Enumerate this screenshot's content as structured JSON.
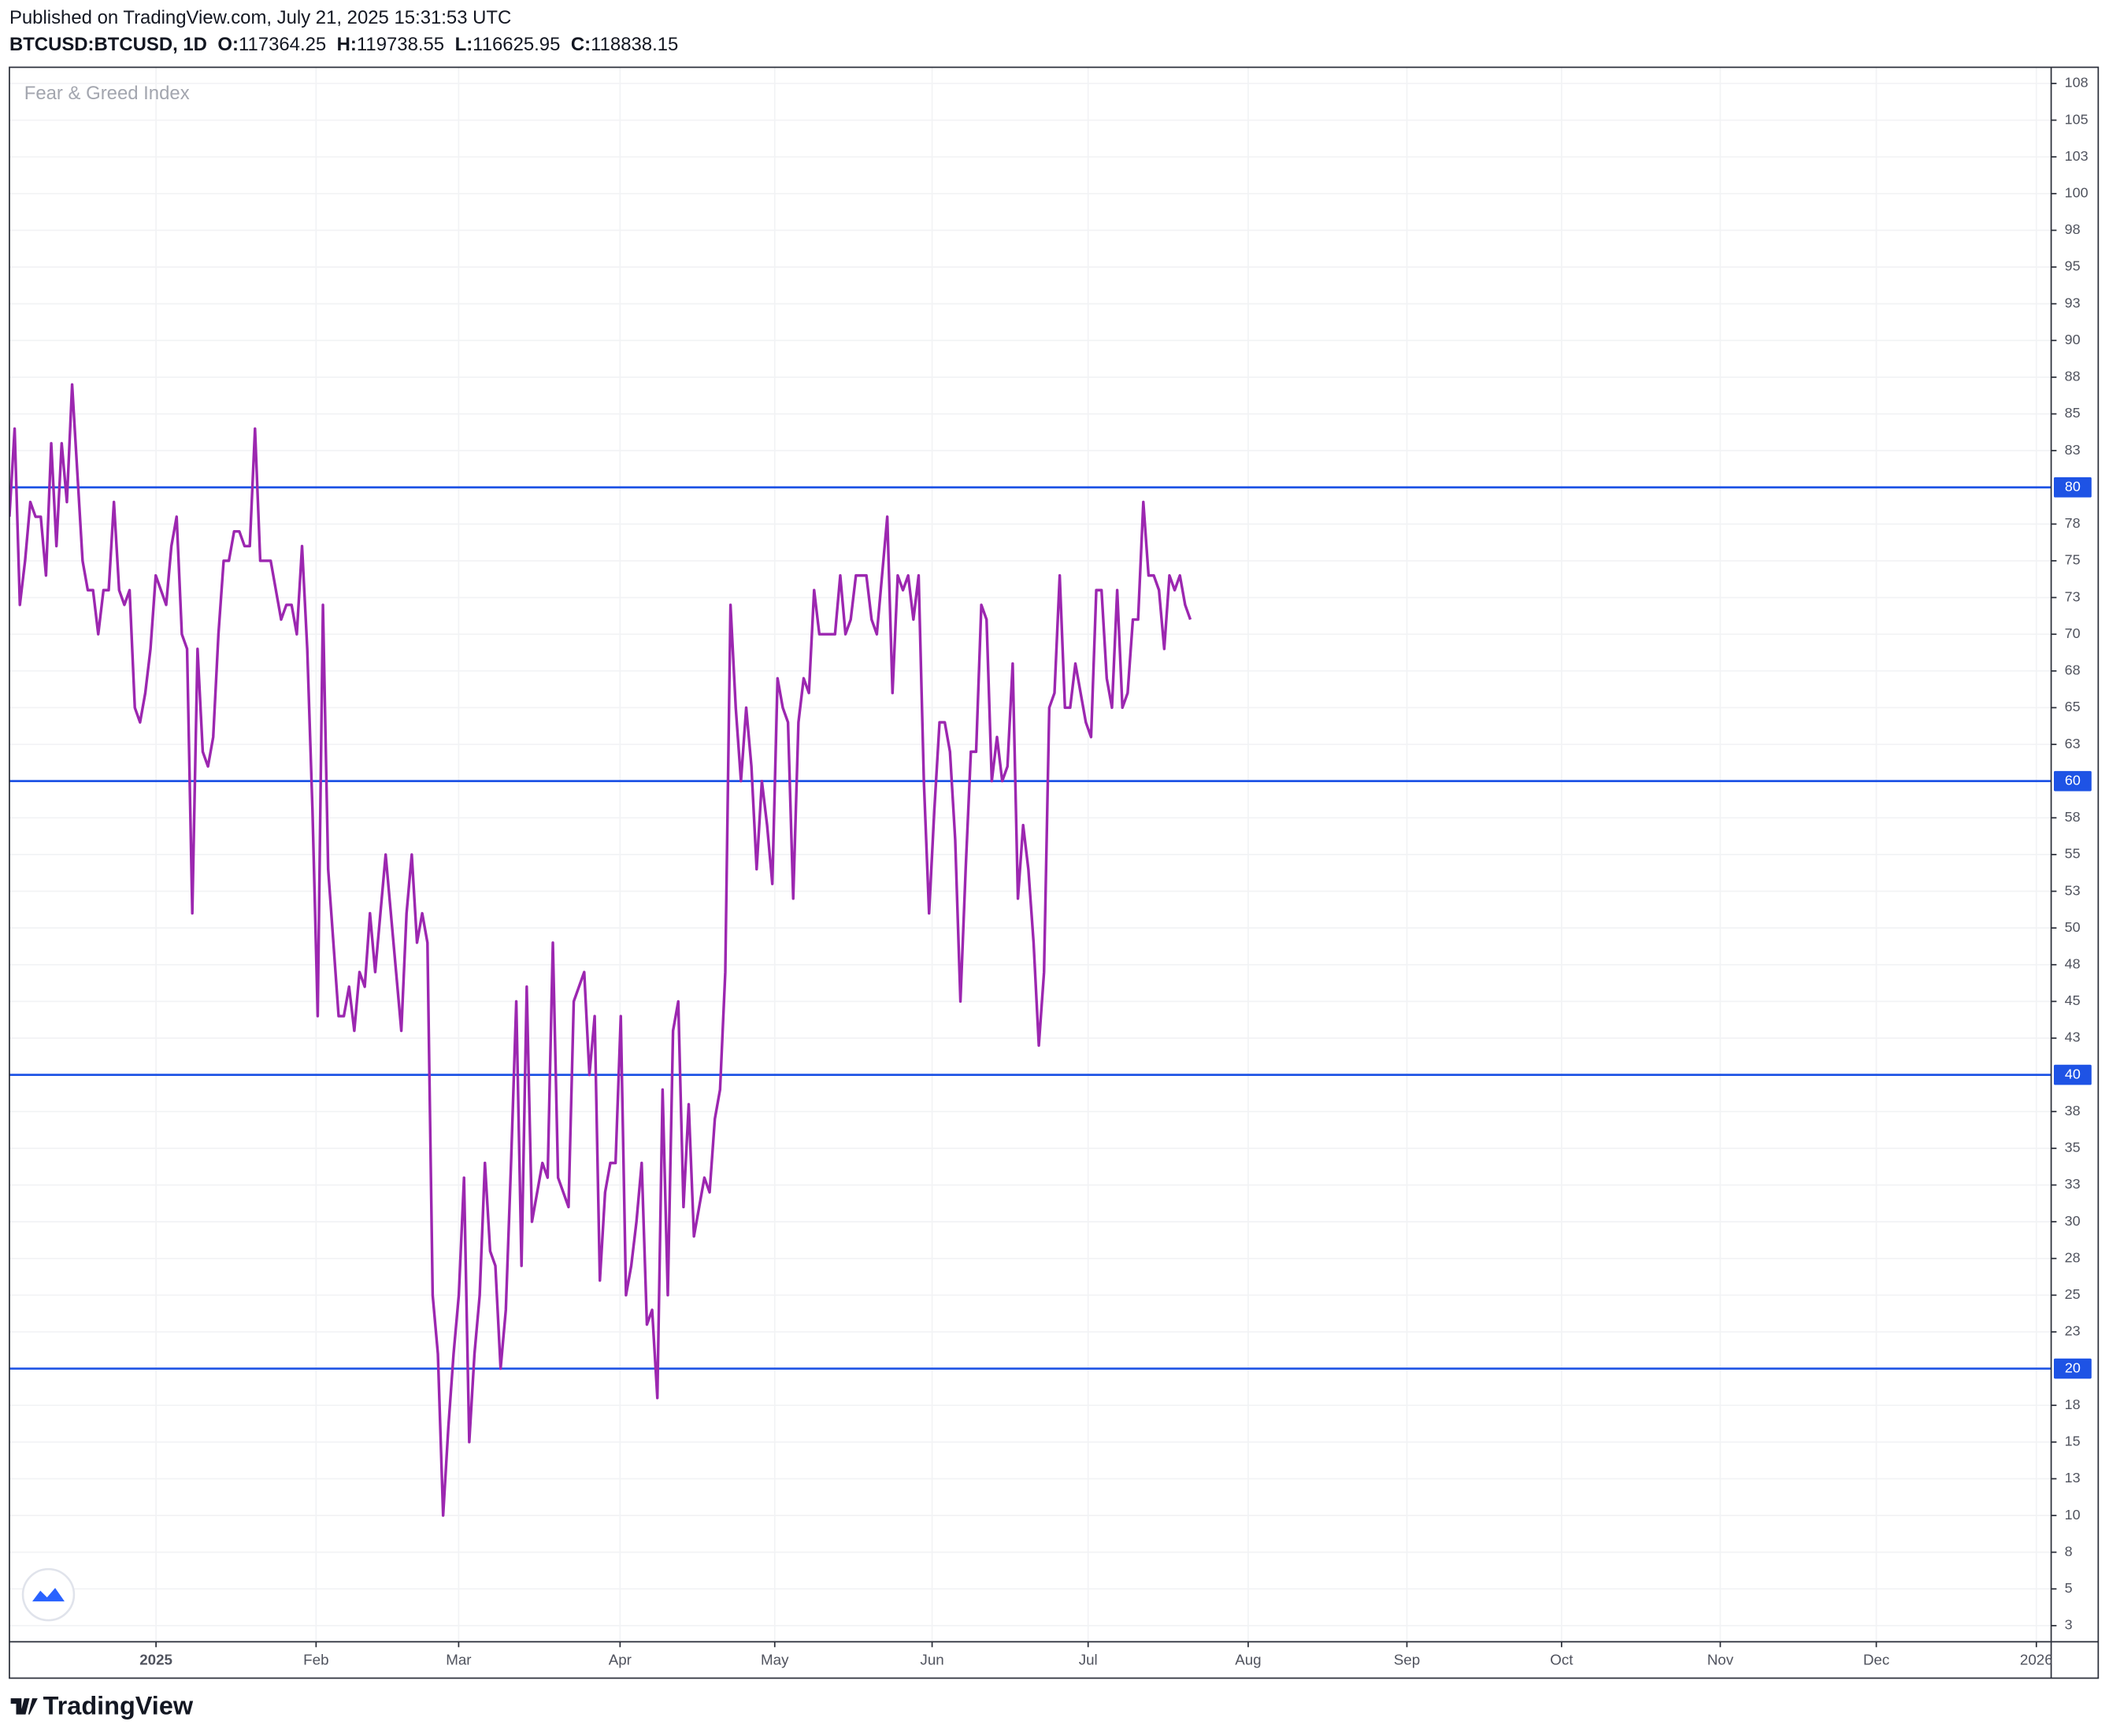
{
  "header": {
    "published": "Published on TradingView.com, July 21, 2025 15:31:53 UTC",
    "symbol": "BTCUSD:BTCUSD, 1D",
    "ohlc": [
      {
        "label": "O:",
        "value": "117364.25"
      },
      {
        "label": "H:",
        "value": "119738.55"
      },
      {
        "label": "L:",
        "value": "116625.95"
      },
      {
        "label": "C:",
        "value": "118838.15"
      }
    ]
  },
  "chart_data": {
    "type": "line",
    "title": "Fear & Greed Index",
    "x_axis_labels": [
      "2025",
      "Feb",
      "Mar",
      "Apr",
      "May",
      "Jun",
      "Jul",
      "Aug",
      "Sep",
      "Oct",
      "Nov",
      "Dec",
      "2026"
    ],
    "series": [
      {
        "color": "#9c27b0",
        "values": [
          78,
          84,
          72,
          75,
          79,
          78,
          78,
          74,
          83,
          76,
          83,
          79,
          87,
          81,
          75,
          73,
          73,
          70,
          73,
          73,
          79,
          73,
          72,
          73,
          65,
          64,
          66,
          69,
          74,
          73,
          72,
          76,
          78,
          70,
          69,
          51,
          69,
          62,
          61,
          63,
          70,
          75,
          75,
          77,
          77,
          76,
          76,
          84,
          75,
          75,
          75,
          73,
          71,
          72,
          72,
          70,
          76,
          69,
          58,
          44,
          72,
          54,
          49,
          44,
          44,
          46,
          43,
          47,
          46,
          51,
          47,
          51,
          55,
          51,
          47,
          43,
          51,
          55,
          49,
          51,
          49,
          25,
          21,
          10,
          16,
          21,
          25,
          33,
          15,
          21,
          25,
          34,
          28,
          27,
          20,
          24,
          34,
          45,
          27,
          46,
          30,
          32,
          34,
          33,
          49,
          33,
          32,
          31,
          45,
          46,
          47,
          40,
          44,
          26,
          32,
          34,
          34,
          44,
          25,
          27,
          30,
          34,
          23,
          24,
          18,
          39,
          25,
          43,
          45,
          31,
          38,
          29,
          31,
          33,
          32,
          37,
          39,
          47,
          72,
          65,
          60,
          65,
          61,
          54,
          60,
          57,
          53,
          67,
          65,
          64,
          52,
          64,
          67,
          66,
          73,
          70,
          70,
          70,
          70,
          74,
          70,
          71,
          74,
          74,
          74,
          71,
          70,
          74,
          78,
          66,
          74,
          73,
          74,
          71,
          74,
          60,
          51,
          58,
          64,
          64,
          62,
          56,
          45,
          54,
          62,
          62,
          72,
          71,
          60,
          63,
          60,
          61,
          68,
          52,
          57,
          54,
          49,
          42,
          47,
          65,
          66,
          74,
          65,
          65,
          68,
          66,
          64,
          63,
          73,
          73,
          67,
          65,
          73,
          65,
          66,
          71,
          71,
          79,
          74,
          74,
          73,
          69,
          74,
          73,
          74,
          72,
          71
        ]
      }
    ],
    "levels": {
      "values": [
        80,
        60,
        40,
        20
      ],
      "color": "#1e53e5"
    },
    "ylim": [
      1.4,
      108.6
    ],
    "yticks": [
      {
        "value": 2.5,
        "label": "3"
      },
      5,
      {
        "value": 7.5,
        "label": "8"
      },
      10,
      {
        "value": 12.5,
        "label": "13"
      },
      15,
      {
        "value": 17.5,
        "label": "18"
      },
      {
        "value": 22.5,
        "label": "23"
      },
      25,
      {
        "value": 27.5,
        "label": "28"
      },
      30,
      {
        "value": 32.5,
        "label": "33"
      },
      35,
      {
        "value": 37.5,
        "label": "38"
      },
      {
        "value": 42.5,
        "label": "43"
      },
      45,
      {
        "value": 47.5,
        "label": "48"
      },
      50,
      {
        "value": 52.5,
        "label": "53"
      },
      55,
      {
        "value": 57.5,
        "label": "58"
      },
      {
        "value": 62.5,
        "label": "63"
      },
      65,
      {
        "value": 67.5,
        "label": "68"
      },
      70,
      {
        "value": 72.5,
        "label": "73"
      },
      75,
      {
        "value": 77.5,
        "label": "78"
      },
      {
        "value": 82.5,
        "label": "83"
      },
      85,
      {
        "value": 87.5,
        "label": "88"
      },
      90,
      {
        "value": 92.5,
        "label": "93"
      },
      95,
      {
        "value": 97.5,
        "label": "98"
      },
      100,
      {
        "value": 102.5,
        "label": "103"
      },
      105,
      {
        "value": 107.5,
        "label": "108"
      }
    ],
    "grid": true
  },
  "footer": {
    "brand": "TradingView"
  }
}
